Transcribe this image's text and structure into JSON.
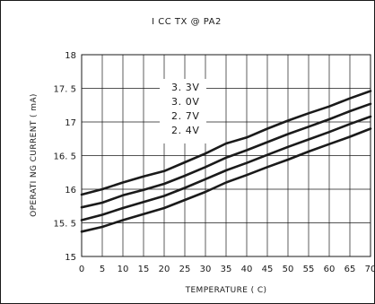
{
  "chart_data": {
    "type": "line",
    "title": "I CC TX @ PA2",
    "xlabel": "TEMPERATURE ( C)",
    "ylabel": "OPERATI NG CURRENT ( mA)",
    "xlim": [
      0,
      70
    ],
    "ylim": [
      15,
      18
    ],
    "x_ticks": [
      "0",
      "5",
      "10",
      "15",
      "20",
      "25",
      "30",
      "35",
      "40",
      "45",
      "50",
      "55",
      "60",
      "65",
      "70"
    ],
    "y_ticks": [
      "15",
      "15. 5",
      "16",
      "16. 5",
      "17",
      "17. 5",
      "18"
    ],
    "grid": true,
    "legend_position": "top-center",
    "x": [
      0,
      5,
      10,
      15,
      20,
      25,
      30,
      35,
      40,
      45,
      50,
      55,
      60,
      65,
      70
    ],
    "series": [
      {
        "name": "3. 3V",
        "values": [
          15.92,
          16.0,
          16.1,
          16.19,
          16.27,
          16.4,
          16.53,
          16.68,
          16.77,
          16.9,
          17.02,
          17.13,
          17.23,
          17.35,
          17.46
        ]
      },
      {
        "name": "3. 0V",
        "values": [
          15.73,
          15.8,
          15.91,
          15.99,
          16.08,
          16.2,
          16.33,
          16.47,
          16.58,
          16.7,
          16.82,
          16.93,
          17.04,
          17.16,
          17.27
        ]
      },
      {
        "name": "2. 7V",
        "values": [
          15.54,
          15.62,
          15.72,
          15.81,
          15.9,
          16.02,
          16.15,
          16.28,
          16.39,
          16.51,
          16.63,
          16.74,
          16.85,
          16.97,
          17.08
        ]
      },
      {
        "name": "2. 4V",
        "values": [
          15.37,
          15.44,
          15.54,
          15.63,
          15.72,
          15.84,
          15.96,
          16.1,
          16.21,
          16.33,
          16.44,
          16.56,
          16.67,
          16.78,
          16.9
        ]
      }
    ],
    "line_color": "#1a1a1a",
    "grid_color": "#1a1a1a"
  }
}
